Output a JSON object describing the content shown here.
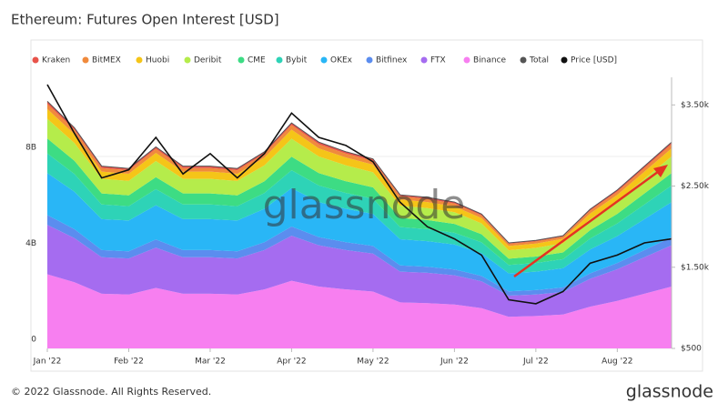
{
  "chart_data": {
    "type": "stacked-area",
    "title": "Ethereum: Futures Open Interest [USD]",
    "watermark": "glassnode",
    "footer": "© 2022 Glassnode. All Rights Reserved.",
    "logo": "glassnode",
    "categories": [
      "Jan '22",
      null,
      null,
      "Feb '22",
      null,
      null,
      "Mar '22",
      null,
      null,
      "Apr '22",
      null,
      null,
      "May '22",
      null,
      null,
      "Jun '22",
      null,
      null,
      "Jul '22",
      null,
      null,
      "Aug '22",
      null,
      null
    ],
    "ylim": [
      0,
      11.3
    ],
    "yticks": [
      0,
      {
        "value": 4,
        "label": "4B"
      },
      {
        "value": 8,
        "label": "8B"
      }
    ],
    "y2lim": [
      500,
      3840
    ],
    "y2ticks": [
      {
        "value": 500,
        "label": "$500"
      },
      {
        "value": 1500,
        "label": "$1.50k"
      },
      {
        "value": 2500,
        "label": "$2.50k"
      },
      {
        "value": 3500,
        "label": "$3.50k"
      }
    ],
    "series": [
      {
        "name": "Kraken",
        "color": "#e8534a",
        "values": [
          0.1,
          0.09,
          0.08,
          0.08,
          0.08,
          0.08,
          0.08,
          0.08,
          0.08,
          0.09,
          0.09,
          0.08,
          0.08,
          0.06,
          0.06,
          0.06,
          0.06,
          0.04,
          0.05,
          0.05,
          0.06,
          0.07,
          0.08,
          0.09
        ]
      },
      {
        "name": "BitMEX",
        "color": "#f08a3c",
        "values": [
          0.21,
          0.18,
          0.15,
          0.15,
          0.17,
          0.15,
          0.15,
          0.15,
          0.16,
          0.19,
          0.17,
          0.16,
          0.16,
          0.13,
          0.13,
          0.12,
          0.11,
          0.09,
          0.09,
          0.09,
          0.12,
          0.13,
          0.15,
          0.17
        ]
      },
      {
        "name": "Huobi",
        "color": "#f5c518",
        "values": [
          0.41,
          0.37,
          0.3,
          0.3,
          0.34,
          0.3,
          0.3,
          0.3,
          0.33,
          0.38,
          0.34,
          0.33,
          0.32,
          0.26,
          0.25,
          0.24,
          0.22,
          0.18,
          0.18,
          0.19,
          0.23,
          0.26,
          0.3,
          0.34
        ]
      },
      {
        "name": "Deribit",
        "color": "#b5ec4b",
        "values": [
          0.82,
          0.74,
          0.61,
          0.6,
          0.67,
          0.61,
          0.61,
          0.6,
          0.66,
          0.75,
          0.69,
          0.66,
          0.63,
          0.51,
          0.5,
          0.49,
          0.45,
          0.35,
          0.36,
          0.38,
          0.46,
          0.53,
          0.61,
          0.69
        ]
      },
      {
        "name": "CME",
        "color": "#3ddc84",
        "values": [
          0.62,
          0.55,
          0.46,
          0.45,
          0.5,
          0.46,
          0.46,
          0.45,
          0.49,
          0.56,
          0.52,
          0.49,
          0.47,
          0.38,
          0.38,
          0.37,
          0.34,
          0.26,
          0.27,
          0.28,
          0.35,
          0.4,
          0.46,
          0.52
        ]
      },
      {
        "name": "Bybit",
        "color": "#2ed3b7",
        "values": [
          0.82,
          0.74,
          0.61,
          0.6,
          0.67,
          0.61,
          0.61,
          0.6,
          0.66,
          0.75,
          0.69,
          0.66,
          0.63,
          0.51,
          0.5,
          0.49,
          0.45,
          0.35,
          0.36,
          0.38,
          0.46,
          0.53,
          0.61,
          0.69
        ]
      },
      {
        "name": "OKEx",
        "color": "#29b6f6",
        "values": [
          1.75,
          1.56,
          1.29,
          1.28,
          1.43,
          1.29,
          1.29,
          1.28,
          1.39,
          1.6,
          1.46,
          1.39,
          1.34,
          1.09,
          1.07,
          1.04,
          0.95,
          0.75,
          0.77,
          0.8,
          0.99,
          1.12,
          1.29,
          1.46
        ]
      },
      {
        "name": "Bitfinex",
        "color": "#5b8def",
        "values": [
          0.41,
          0.37,
          0.3,
          0.3,
          0.34,
          0.3,
          0.3,
          0.3,
          0.33,
          0.38,
          0.34,
          0.33,
          0.32,
          0.26,
          0.25,
          0.24,
          0.22,
          0.18,
          0.18,
          0.19,
          0.23,
          0.26,
          0.3,
          0.34
        ]
      },
      {
        "name": "FTX",
        "color": "#a56cf0",
        "values": [
          2.06,
          1.84,
          1.52,
          1.5,
          1.68,
          1.52,
          1.52,
          1.5,
          1.64,
          1.88,
          1.72,
          1.64,
          1.58,
          1.28,
          1.26,
          1.22,
          1.12,
          0.88,
          0.9,
          0.94,
          1.16,
          1.32,
          1.52,
          1.72
        ]
      },
      {
        "name": "Binance",
        "color": "#f77ff0",
        "values": [
          3.09,
          2.76,
          2.28,
          2.25,
          2.52,
          2.28,
          2.28,
          2.25,
          2.46,
          2.82,
          2.58,
          2.46,
          2.37,
          1.92,
          1.89,
          1.83,
          1.68,
          1.32,
          1.35,
          1.41,
          1.74,
          1.98,
          2.28,
          2.58
        ]
      },
      {
        "name": "Total",
        "color": "#555555",
        "kind": "line",
        "values": [
          10.3,
          9.2,
          7.6,
          7.5,
          8.4,
          7.6,
          7.6,
          7.5,
          8.2,
          9.4,
          8.6,
          8.2,
          7.9,
          6.4,
          6.3,
          6.1,
          5.6,
          4.4,
          4.5,
          4.7,
          5.8,
          6.6,
          7.6,
          8.6
        ]
      },
      {
        "name": "Price [USD]",
        "color": "#111111",
        "kind": "line",
        "axis": "y2",
        "values": [
          3750,
          3150,
          2600,
          2700,
          3100,
          2650,
          2900,
          2600,
          2900,
          3400,
          3100,
          3000,
          2800,
          2300,
          2000,
          1850,
          1650,
          1100,
          1050,
          1200,
          1550,
          1650,
          1800,
          1850
        ]
      }
    ]
  }
}
